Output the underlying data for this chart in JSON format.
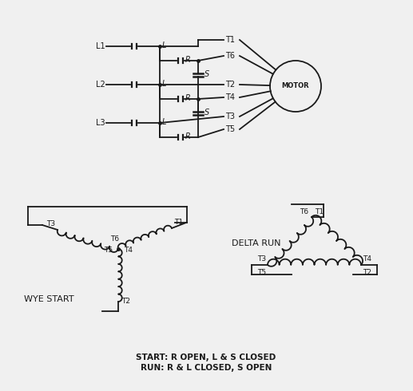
{
  "bg_color": "#f0f0f0",
  "line_color": "#1a1a1a",
  "text_color": "#1a1a1a",
  "label_fontsize": 7,
  "annotation_text": [
    "START: R OPEN, L & S CLOSED",
    "RUN: R & L CLOSED, S OPEN"
  ],
  "wye_label": "WYE START",
  "delta_label": "DELTA RUN"
}
